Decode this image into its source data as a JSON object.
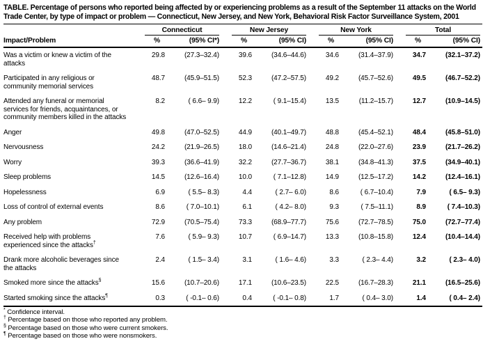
{
  "title": "TABLE. Percentage of persons who reported being affected by or experiencing problems as a result of the September 11 attacks on the World Trade Center, by type of impact or problem — Connecticut, New Jersey, and New York, Behavioral Risk Factor Surveillance System, 2001",
  "table": {
    "row_header": "Impact/Problem",
    "groups": [
      {
        "name": "Connecticut",
        "pct_label": "%",
        "ci_label": "(95% CI*)"
      },
      {
        "name": "New Jersey",
        "pct_label": "%",
        "ci_label": "(95% CI)"
      },
      {
        "name": "New York",
        "pct_label": "%",
        "ci_label": "(95% CI)"
      },
      {
        "name": "Total",
        "pct_label": "%",
        "ci_label": "(95% CI)"
      }
    ],
    "rows": [
      {
        "label": "Was a victim or knew a victim of the attacks",
        "sup": "",
        "values": [
          "29.8",
          "(27.3–32.4)",
          "39.6",
          "(34.6–44.6)",
          "34.6",
          "(31.4–37.9)",
          "34.7",
          "(32.1–37.2)"
        ]
      },
      {
        "label": "Participated in any religious or community memorial services",
        "sup": "",
        "values": [
          "48.7",
          "(45.9–51.5)",
          "52.3",
          "(47.2–57.5)",
          "49.2",
          "(45.7–52.6)",
          "49.5",
          "(46.7–52.2)"
        ]
      },
      {
        "label": "Attended any funeral or memorial services for friends, acquaintances, or community members killed in the attacks",
        "sup": "",
        "values": [
          "8.2",
          "( 6.6– 9.9)",
          "12.2",
          "( 9.1–15.4)",
          "13.5",
          "(11.2–15.7)",
          "12.7",
          "(10.9–14.5)"
        ]
      },
      {
        "label": "Anger",
        "sup": "",
        "values": [
          "49.8",
          "(47.0–52.5)",
          "44.9",
          "(40.1–49.7)",
          "48.8",
          "(45.4–52.1)",
          "48.4",
          "(45.8–51.0)"
        ]
      },
      {
        "label": "Nervousness",
        "sup": "",
        "values": [
          "24.2",
          "(21.9–26.5)",
          "18.0",
          "(14.6–21.4)",
          "24.8",
          "(22.0–27.6)",
          "23.9",
          "(21.7–26.2)"
        ]
      },
      {
        "label": "Worry",
        "sup": "",
        "values": [
          "39.3",
          "(36.6–41.9)",
          "32.2",
          "(27.7–36.7)",
          "38.1",
          "(34.8–41.3)",
          "37.5",
          "(34.9–40.1)"
        ]
      },
      {
        "label": "Sleep problems",
        "sup": "",
        "values": [
          "14.5",
          "(12.6–16.4)",
          "10.0",
          "( 7.1–12.8)",
          "14.9",
          "(12.5–17.2)",
          "14.2",
          "(12.4–16.1)"
        ]
      },
      {
        "label": "Hopelessness",
        "sup": "",
        "values": [
          "6.9",
          "( 5.5– 8.3)",
          "4.4",
          "( 2.7– 6.0)",
          "8.6",
          "( 6.7–10.4)",
          "7.9",
          "( 6.5– 9.3)"
        ]
      },
      {
        "label": "Loss of control of external events",
        "sup": "",
        "values": [
          "8.6",
          "( 7.0–10.1)",
          "6.1",
          "( 4.2– 8.0)",
          "9.3",
          "( 7.5–11.1)",
          "8.9",
          "( 7.4–10.3)"
        ]
      },
      {
        "label": "Any problem",
        "sup": "",
        "values": [
          "72.9",
          "(70.5–75.4)",
          "73.3",
          "(68.9–77.7)",
          "75.6",
          "(72.7–78.5)",
          "75.0",
          "(72.7–77.4)"
        ]
      },
      {
        "label": "Received help with problems experienced since the attacks",
        "sup": "†",
        "values": [
          "7.6",
          "( 5.9– 9.3)",
          "10.7",
          "( 6.9–14.7)",
          "13.3",
          "(10.8–15.8)",
          "12.4",
          "(10.4–14.4)"
        ]
      },
      {
        "label": "Drank more alcoholic beverages since the attacks",
        "sup": "",
        "values": [
          "2.4",
          "( 1.5– 3.4)",
          "3.1",
          "( 1.6– 4.6)",
          "3.3",
          "( 2.3– 4.4)",
          "3.2",
          "( 2.3– 4.0)"
        ]
      },
      {
        "label": "Smoked more since the attacks",
        "sup": "§",
        "values": [
          "15.6",
          "(10.7–20.6)",
          "17.1",
          "(10.6–23.5)",
          "22.5",
          "(16.7–28.3)",
          "21.1",
          "(16.5–25.6)"
        ]
      },
      {
        "label": "Started smoking since the attacks",
        "sup": "¶",
        "values": [
          "0.3",
          "( -0.1– 0.6)",
          "0.4",
          "( -0.1– 0.8)",
          "1.7",
          "( 0.4– 3.0)",
          "1.4",
          "( 0.4– 2.4)"
        ]
      }
    ]
  },
  "footnotes": [
    {
      "marker": "*",
      "text": "Confidence interval."
    },
    {
      "marker": "†",
      "text": "Percentage based on those who reported any problem."
    },
    {
      "marker": "§",
      "text": "Percentage based on those who were current smokers."
    },
    {
      "marker": "¶",
      "text": "Percentage based on those who were nonsmokers."
    }
  ]
}
